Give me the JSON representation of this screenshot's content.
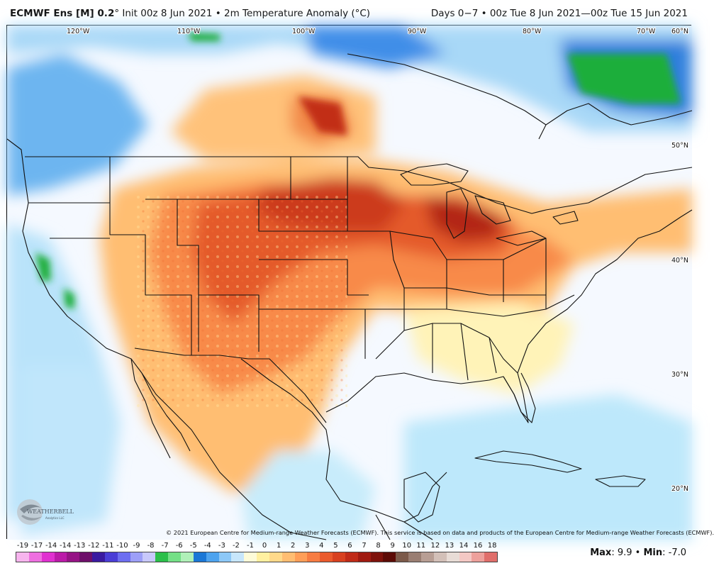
{
  "header": {
    "model": "ECMWF Ens [M] 0.2",
    "degree": "°",
    "init": "Init 00z 8 Jun 2021",
    "bullet": "•",
    "field": "2m Temperature Anomaly (°C)",
    "valid": "Days 0−7 • 00z Tue 8 Jun 2021—00z Tue 15 Jun 2021"
  },
  "map": {
    "lon_labels": [
      "120°W",
      "110°W",
      "100°W",
      "90°W",
      "80°W",
      "70°W"
    ],
    "lat_labels": [
      "60°N",
      "50°N",
      "40°N",
      "30°N",
      "20°N"
    ],
    "copyright": "© 2021 European Centre for Medium-range Weather Forecasts (ECMWF). This service is based on data and products of the European Centre for Medium-range Weather Forecasts (ECMWF).",
    "logo_text": "WEATHERBELL",
    "logo_sub": "Analytics LLC"
  },
  "colorbar": {
    "ticks": [
      "-19",
      "-17",
      "-14",
      "-14",
      "-13",
      "-12",
      "-11",
      "-10",
      "-9",
      "-8",
      "-7",
      "-6",
      "-5",
      "-4",
      "-3",
      "-2",
      "-1",
      "0",
      "1",
      "2",
      "3",
      "4",
      "5",
      "6",
      "7",
      "8",
      "9",
      "10",
      "11",
      "12",
      "13",
      "14",
      "16",
      "18"
    ],
    "colors": [
      "#f7b4ee",
      "#ee6fe0",
      "#e030d0",
      "#bb1aa8",
      "#961385",
      "#6e0f6a",
      "#3a1aa0",
      "#4a3dd6",
      "#6d6ef0",
      "#9d9ff8",
      "#c8c8fb",
      "#2bbf4a",
      "#74df86",
      "#b0f0b8",
      "#1b77d6",
      "#4ea3ee",
      "#8dc8f7",
      "#c7e6fb",
      "#fdfbd8",
      "#fff0a0",
      "#ffd98a",
      "#ffbd72",
      "#ff9e58",
      "#f77c42",
      "#ea5a2c",
      "#d8401f",
      "#c02a17",
      "#a01a10",
      "#7e120b",
      "#5c0b06",
      "#7c5a4a",
      "#9a7e72",
      "#b89e94",
      "#d3c0b8",
      "#e8dcd6",
      "#f4c8c4",
      "#eda09b",
      "#e06e6a"
    ]
  },
  "stats": {
    "max_label": "Max",
    "max_value": ": 9.9",
    "sep": " • ",
    "min_label": "Min",
    "min_value": ": -7.0"
  }
}
